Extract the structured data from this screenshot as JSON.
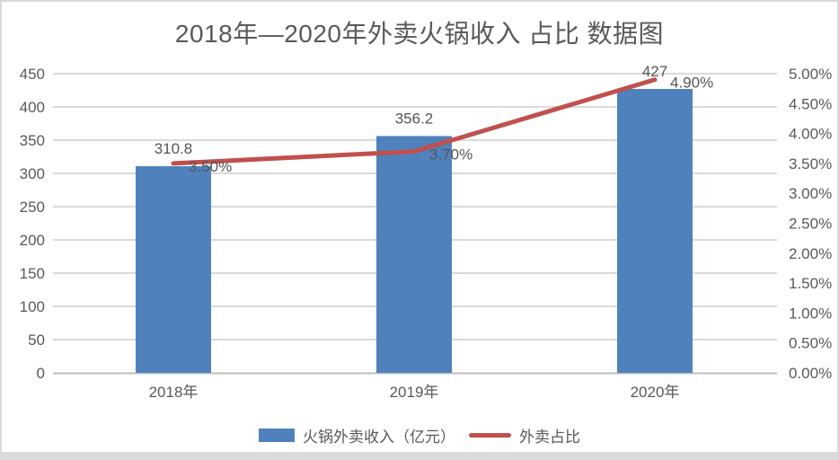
{
  "colors": {
    "bar": "#4F81BD",
    "line": "#C0504D",
    "grid": "#D9D9D9",
    "axis_line": "#BFBFBF",
    "text": "#595959",
    "data_label": "#555555",
    "frame_border": "#D9D9D9"
  },
  "chart_data": {
    "type": "combo_bar_line",
    "title": "2018年—2020年外卖火锅收入 占比 数据图",
    "categories": [
      "2018年",
      "2019年",
      "2020年"
    ],
    "series": [
      {
        "name": "火锅外卖收入（亿元）",
        "chart": "bar",
        "axis": "left",
        "values": [
          310.8,
          356.2,
          427
        ],
        "labels": [
          "310.8",
          "356.2",
          "427"
        ]
      },
      {
        "name": "外卖占比",
        "chart": "line",
        "axis": "right",
        "values": [
          3.5,
          3.7,
          4.9
        ],
        "labels": [
          "3.50%",
          "3.70%",
          "4.90%"
        ]
      }
    ],
    "left_axis": {
      "min": 0,
      "max": 450,
      "step": 50,
      "ticks": [
        "0",
        "50",
        "100",
        "150",
        "200",
        "250",
        "300",
        "350",
        "400",
        "450"
      ]
    },
    "right_axis": {
      "min": 0,
      "max": 5,
      "step": 0.5,
      "ticks": [
        "0.00%",
        "0.50%",
        "1.00%",
        "1.50%",
        "2.00%",
        "2.50%",
        "3.00%",
        "3.50%",
        "4.00%",
        "4.50%",
        "5.00%"
      ]
    },
    "grid": "horizontal",
    "legend_position": "bottom"
  }
}
